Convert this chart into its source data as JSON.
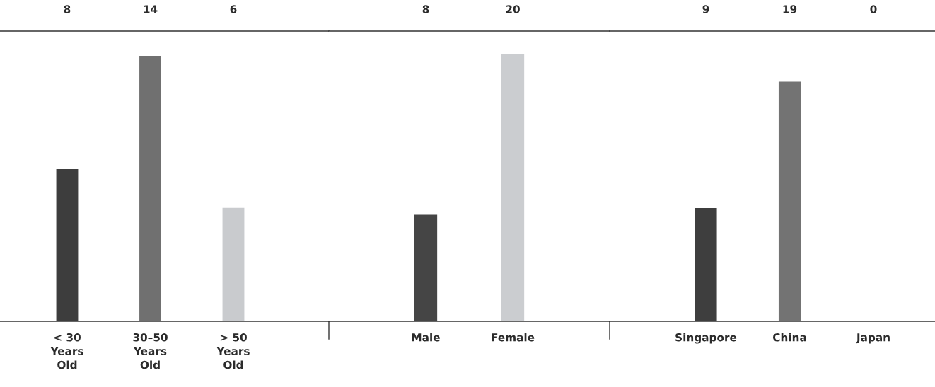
{
  "chart_data": [
    {
      "type": "bar",
      "categories": [
        "< 30\nYears\nOld",
        "30–50\nYears\nOld",
        "> 50\nYears\nOld"
      ],
      "values": [
        8,
        14,
        6
      ],
      "colors": [
        "#3d3d3d",
        "#707070",
        "#c9cbce"
      ],
      "ylim": [
        0,
        15.3
      ],
      "data_labels": true,
      "tick_labels": "x",
      "grid": false,
      "legend": false
    },
    {
      "type": "bar",
      "categories": [
        "Male",
        "Female"
      ],
      "values": [
        8,
        20
      ],
      "colors": [
        "#454545",
        "#cbcdd0"
      ],
      "ylim": [
        0,
        21.7
      ],
      "data_labels": true,
      "tick_labels": "x",
      "grid": false,
      "legend": false
    },
    {
      "type": "bar",
      "categories": [
        "Singapore",
        "China",
        "Japan"
      ],
      "values": [
        9,
        19,
        0
      ],
      "colors": [
        "#3e3e3e",
        "#737373",
        "#555555"
      ],
      "ylim": [
        0,
        23
      ],
      "data_labels": true,
      "tick_labels": "x",
      "grid": false,
      "legend": false
    }
  ]
}
